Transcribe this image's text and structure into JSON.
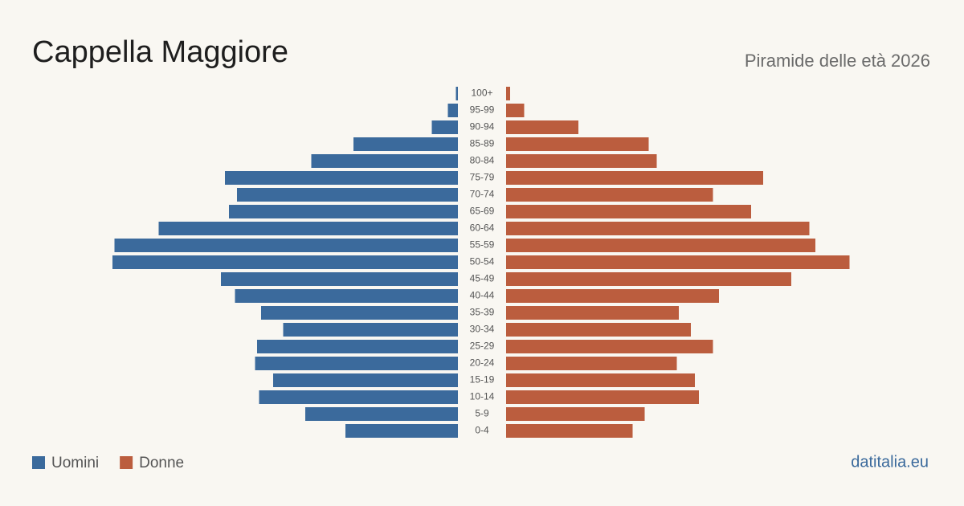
{
  "chart_data": {
    "type": "pyramid",
    "title": "Cappella Maggiore",
    "subtitle": "Piramide delle età 2026",
    "source": "datitalia.eu",
    "categories": [
      "100+",
      "95-99",
      "90-94",
      "85-89",
      "80-84",
      "75-79",
      "70-74",
      "65-69",
      "60-64",
      "55-59",
      "50-54",
      "45-49",
      "40-44",
      "35-39",
      "30-34",
      "25-29",
      "20-24",
      "15-19",
      "10-14",
      "5-9",
      "0-4"
    ],
    "series": [
      {
        "name": "Uomini",
        "color": "#3b6a9c",
        "values": [
          1,
          5,
          13,
          52,
          73,
          116,
          110,
          114,
          149,
          171,
          172,
          118,
          111,
          98,
          87,
          100,
          101,
          92,
          99,
          76,
          56
        ]
      },
      {
        "name": "Donne",
        "color": "#bb5d3e",
        "values": [
          2,
          9,
          36,
          71,
          75,
          128,
          103,
          122,
          151,
          154,
          171,
          142,
          106,
          86,
          92,
          103,
          85,
          94,
          96,
          69,
          63
        ]
      }
    ]
  }
}
